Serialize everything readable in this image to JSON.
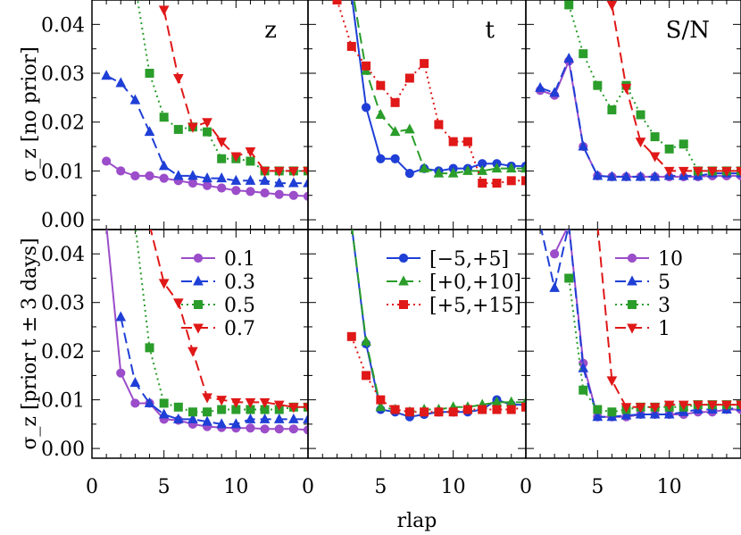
{
  "figure": {
    "xlabel": "rlap",
    "row_labels": [
      "σ_z [no prior]",
      "σ_z [prior t ± 3 days]"
    ],
    "column_titles": [
      "z",
      "t",
      "S/N"
    ]
  },
  "chart_data": [
    {
      "type": "line",
      "panel": "z-no-prior",
      "title": "z",
      "xlim": [
        0,
        15
      ],
      "ylim": [
        -0.002,
        0.045
      ],
      "log_scale": false,
      "grid": false,
      "series": [
        {
          "legend": "0.1",
          "color": "#9b4dca",
          "linestyle": "solid",
          "marker": "circle",
          "x": [
            1,
            2,
            3,
            4,
            5,
            6,
            7,
            8,
            9,
            10,
            11,
            12,
            13,
            14,
            15
          ],
          "y": [
            0.012,
            0.01,
            0.009,
            0.009,
            0.0085,
            0.008,
            0.0075,
            0.007,
            0.0065,
            0.006,
            0.0058,
            0.0055,
            0.0052,
            0.005,
            0.0048
          ]
        },
        {
          "legend": "0.3",
          "color": "#1f3fd6",
          "linestyle": "dashed",
          "marker": "triangle-up",
          "x": [
            1,
            2,
            3,
            4,
            5,
            6,
            7,
            8,
            9,
            10,
            11,
            12,
            13,
            14,
            15
          ],
          "y": [
            0.0295,
            0.028,
            0.0245,
            0.018,
            0.011,
            0.009,
            0.009,
            0.0085,
            0.0085,
            0.008,
            0.008,
            0.008,
            0.0075,
            0.0075,
            0.0075
          ]
        },
        {
          "legend": "0.5",
          "color": "#2a9d2a",
          "linestyle": "dotted",
          "marker": "square",
          "x": [
            3,
            4,
            5,
            6,
            7,
            8,
            9,
            10,
            11,
            12,
            13,
            14,
            15
          ],
          "y": [
            0.048,
            0.03,
            0.021,
            0.0185,
            0.019,
            0.018,
            0.0125,
            0.0125,
            0.012,
            0.01,
            0.01,
            0.01,
            0.01
          ]
        },
        {
          "legend": "0.7",
          "color": "#e01818",
          "linestyle": "dashed",
          "marker": "triangle-down",
          "x": [
            5,
            6,
            7,
            8,
            9,
            10,
            11,
            12,
            13,
            14,
            15
          ],
          "y": [
            0.043,
            0.029,
            0.019,
            0.02,
            0.016,
            0.013,
            0.014,
            0.01,
            0.01,
            0.01,
            0.01
          ]
        }
      ]
    },
    {
      "type": "line",
      "panel": "t-no-prior",
      "title": "t",
      "xlim": [
        0,
        15
      ],
      "ylim": [
        -0.002,
        0.045
      ],
      "log_scale": false,
      "grid": false,
      "series": [
        {
          "legend": "[−5,+5]",
          "color": "#1f3fd6",
          "linestyle": "solid",
          "marker": "circle",
          "x": [
            3,
            4,
            5,
            6,
            7,
            8,
            9,
            10,
            11,
            12,
            13,
            14,
            15
          ],
          "y": [
            0.046,
            0.023,
            0.0125,
            0.0125,
            0.0095,
            0.0105,
            0.01,
            0.0105,
            0.0105,
            0.0115,
            0.0115,
            0.011,
            0.011
          ]
        },
        {
          "legend": "[+0,+10]",
          "color": "#2a9d2a",
          "linestyle": "dashed",
          "marker": "triangle-up",
          "x": [
            3,
            4,
            5,
            6,
            7,
            8,
            9,
            10,
            11,
            12,
            13,
            14,
            15
          ],
          "y": [
            0.048,
            0.0305,
            0.0215,
            0.018,
            0.0185,
            0.0105,
            0.0095,
            0.0095,
            0.01,
            0.01,
            0.0105,
            0.0105,
            0.0105
          ]
        },
        {
          "legend": "[+5,+15]",
          "color": "#e01818",
          "linestyle": "dotted",
          "marker": "square",
          "x": [
            2,
            3,
            4,
            5,
            6,
            7,
            8,
            9,
            10,
            11,
            12,
            13,
            14,
            15
          ],
          "y": [
            0.045,
            0.0355,
            0.0315,
            0.0275,
            0.024,
            0.029,
            0.032,
            0.0195,
            0.016,
            0.016,
            0.0075,
            0.0075,
            0.008,
            0.008
          ]
        }
      ]
    },
    {
      "type": "line",
      "panel": "sn-no-prior",
      "title": "S/N",
      "xlim": [
        0,
        15
      ],
      "ylim": [
        -0.002,
        0.045
      ],
      "log_scale": false,
      "grid": false,
      "series": [
        {
          "legend": "10",
          "color": "#9b4dca",
          "linestyle": "solid",
          "marker": "circle",
          "x": [
            1,
            2,
            3,
            4,
            5,
            6,
            7,
            8,
            9,
            10,
            11,
            12,
            13,
            14,
            15
          ],
          "y": [
            0.0265,
            0.0255,
            0.0325,
            0.015,
            0.009,
            0.0088,
            0.0088,
            0.0088,
            0.0088,
            0.0088,
            0.0088,
            0.0088,
            0.009,
            0.009,
            0.009
          ]
        },
        {
          "legend": "5",
          "color": "#1f3fd6",
          "linestyle": "dashed",
          "marker": "triangle-up",
          "x": [
            1,
            2,
            3,
            4,
            5,
            6,
            7,
            8,
            9,
            10,
            11,
            12,
            13,
            14,
            15
          ],
          "y": [
            0.027,
            0.026,
            0.033,
            0.015,
            0.009,
            0.0088,
            0.0088,
            0.0088,
            0.0088,
            0.009,
            0.009,
            0.009,
            0.0095,
            0.0095,
            0.0095
          ]
        },
        {
          "legend": "3",
          "color": "#2a9d2a",
          "linestyle": "dotted",
          "marker": "square",
          "x": [
            3,
            4,
            5,
            6,
            7,
            8,
            9,
            10,
            11,
            12,
            13,
            14,
            15
          ],
          "y": [
            0.044,
            0.034,
            0.0275,
            0.0225,
            0.0275,
            0.0215,
            0.017,
            0.0145,
            0.0155,
            0.01,
            0.01,
            0.01,
            0.01
          ]
        },
        {
          "legend": "1",
          "color": "#e01818",
          "linestyle": "dashed",
          "marker": "triangle-down",
          "x": [
            6,
            7,
            8,
            9,
            10,
            11,
            12,
            13,
            14,
            15
          ],
          "y": [
            0.044,
            0.027,
            0.016,
            0.013,
            0.01,
            0.01,
            0.01,
            0.01,
            0.01,
            0.01
          ]
        }
      ]
    },
    {
      "type": "line",
      "panel": "z-prior",
      "title": "",
      "xlim": [
        0,
        15
      ],
      "ylim": [
        -0.002,
        0.045
      ],
      "log_scale": false,
      "grid": false,
      "legend_placement": "top-right",
      "series": [
        {
          "legend": "0.1",
          "color": "#9b4dca",
          "linestyle": "solid",
          "marker": "circle",
          "x": [
            1,
            2,
            3,
            4,
            5,
            6,
            7,
            8,
            9,
            10,
            11,
            12,
            13,
            14,
            15
          ],
          "y": [
            0.046,
            0.0155,
            0.0093,
            0.0093,
            0.006,
            0.0058,
            0.005,
            0.0045,
            0.0043,
            0.0042,
            0.0042,
            0.004,
            0.004,
            0.004,
            0.0038
          ]
        },
        {
          "legend": "0.3",
          "color": "#1f3fd6",
          "linestyle": "dashed",
          "marker": "triangle-up",
          "x": [
            2,
            3,
            4,
            5,
            6,
            7,
            8,
            9,
            10,
            11,
            12,
            13,
            14,
            15
          ],
          "y": [
            0.027,
            0.0135,
            0.0093,
            0.007,
            0.006,
            0.006,
            0.0055,
            0.005,
            0.005,
            0.006,
            0.006,
            0.006,
            0.006,
            0.006
          ]
        },
        {
          "legend": "0.5",
          "color": "#2a9d2a",
          "linestyle": "dotted",
          "marker": "square",
          "x": [
            3,
            4,
            5,
            6,
            7,
            8,
            9,
            10,
            11,
            12,
            13,
            14,
            15
          ],
          "y": [
            0.046,
            0.0207,
            0.0093,
            0.0085,
            0.0075,
            0.0075,
            0.008,
            0.008,
            0.008,
            0.008,
            0.008,
            0.0085,
            0.0085
          ]
        },
        {
          "legend": "0.7",
          "color": "#e01818",
          "linestyle": "dashed",
          "marker": "triangle-down",
          "x": [
            4,
            5,
            6,
            7,
            8,
            9,
            10,
            11,
            12,
            13,
            14,
            15
          ],
          "y": [
            0.046,
            0.034,
            0.03,
            0.02,
            0.0105,
            0.01,
            0.0095,
            0.0095,
            0.0095,
            0.009,
            0.0085,
            0.0085
          ]
        }
      ]
    },
    {
      "type": "line",
      "panel": "t-prior",
      "title": "",
      "xlim": [
        0,
        15
      ],
      "ylim": [
        -0.002,
        0.045
      ],
      "log_scale": false,
      "grid": false,
      "legend_placement": "top-right",
      "series": [
        {
          "legend": "[−5,+5]",
          "color": "#1f3fd6",
          "linestyle": "solid",
          "marker": "circle",
          "x": [
            3,
            4,
            5,
            6,
            7,
            8,
            9,
            10,
            11,
            12,
            13,
            14,
            15
          ],
          "y": [
            0.046,
            0.0215,
            0.008,
            0.0075,
            0.0065,
            0.007,
            0.0075,
            0.0075,
            0.0075,
            0.008,
            0.01,
            0.009,
            0.009
          ]
        },
        {
          "legend": "[+0,+10]",
          "color": "#2a9d2a",
          "linestyle": "dashed",
          "marker": "triangle-up",
          "x": [
            3,
            4,
            5,
            6,
            7,
            8,
            9,
            10,
            11,
            12,
            13,
            14,
            15
          ],
          "y": [
            0.046,
            0.022,
            0.0085,
            0.008,
            0.0075,
            0.008,
            0.008,
            0.0085,
            0.0085,
            0.009,
            0.0095,
            0.0095,
            0.0095
          ]
        },
        {
          "legend": "[+5,+15]",
          "color": "#e01818",
          "linestyle": "dotted",
          "marker": "square",
          "x": [
            3,
            4,
            5,
            6,
            7,
            8,
            9,
            10,
            11,
            12,
            13,
            14,
            15
          ],
          "y": [
            0.023,
            0.015,
            0.01,
            0.008,
            0.0075,
            0.0075,
            0.0075,
            0.0075,
            0.008,
            0.008,
            0.008,
            0.008,
            0.0085
          ]
        }
      ]
    },
    {
      "type": "line",
      "panel": "sn-prior",
      "title": "",
      "xlim": [
        0,
        15
      ],
      "ylim": [
        -0.002,
        0.045
      ],
      "log_scale": false,
      "grid": false,
      "legend_placement": "top-right",
      "series": [
        {
          "legend": "10",
          "color": "#9b4dca",
          "linestyle": "solid",
          "marker": "circle",
          "x": [
            2,
            3,
            4,
            5,
            6,
            7,
            8,
            9,
            10,
            11,
            12,
            13,
            14,
            15
          ],
          "y": [
            0.04,
            0.046,
            0.0175,
            0.0065,
            0.0065,
            0.0065,
            0.007,
            0.007,
            0.007,
            0.007,
            0.0075,
            0.0075,
            0.008,
            0.008
          ]
        },
        {
          "legend": "5",
          "color": "#1f3fd6",
          "linestyle": "dashed",
          "marker": "triangle-up",
          "x": [
            1,
            2,
            3,
            4,
            5,
            6,
            7,
            8,
            9,
            10,
            11,
            12,
            13,
            14,
            15
          ],
          "y": [
            0.046,
            0.033,
            0.046,
            0.0165,
            0.0065,
            0.0065,
            0.0068,
            0.007,
            0.007,
            0.007,
            0.0075,
            0.008,
            0.008,
            0.008,
            0.0085
          ]
        },
        {
          "legend": "3",
          "color": "#2a9d2a",
          "linestyle": "dotted",
          "marker": "square",
          "x": [
            3,
            4,
            5,
            6,
            7,
            8,
            9,
            10,
            11,
            12,
            13,
            14,
            15
          ],
          "y": [
            0.035,
            0.012,
            0.008,
            0.0075,
            0.008,
            0.0085,
            0.0085,
            0.0085,
            0.0085,
            0.009,
            0.009,
            0.009,
            0.009
          ]
        },
        {
          "legend": "1",
          "color": "#e01818",
          "linestyle": "dashed",
          "marker": "triangle-down",
          "x": [
            5,
            6,
            7,
            8,
            9,
            10,
            11,
            12,
            13,
            14,
            15
          ],
          "y": [
            0.046,
            0.014,
            0.0085,
            0.0085,
            0.0085,
            0.009,
            0.009,
            0.009,
            0.009,
            0.009,
            0.009
          ]
        }
      ]
    }
  ]
}
